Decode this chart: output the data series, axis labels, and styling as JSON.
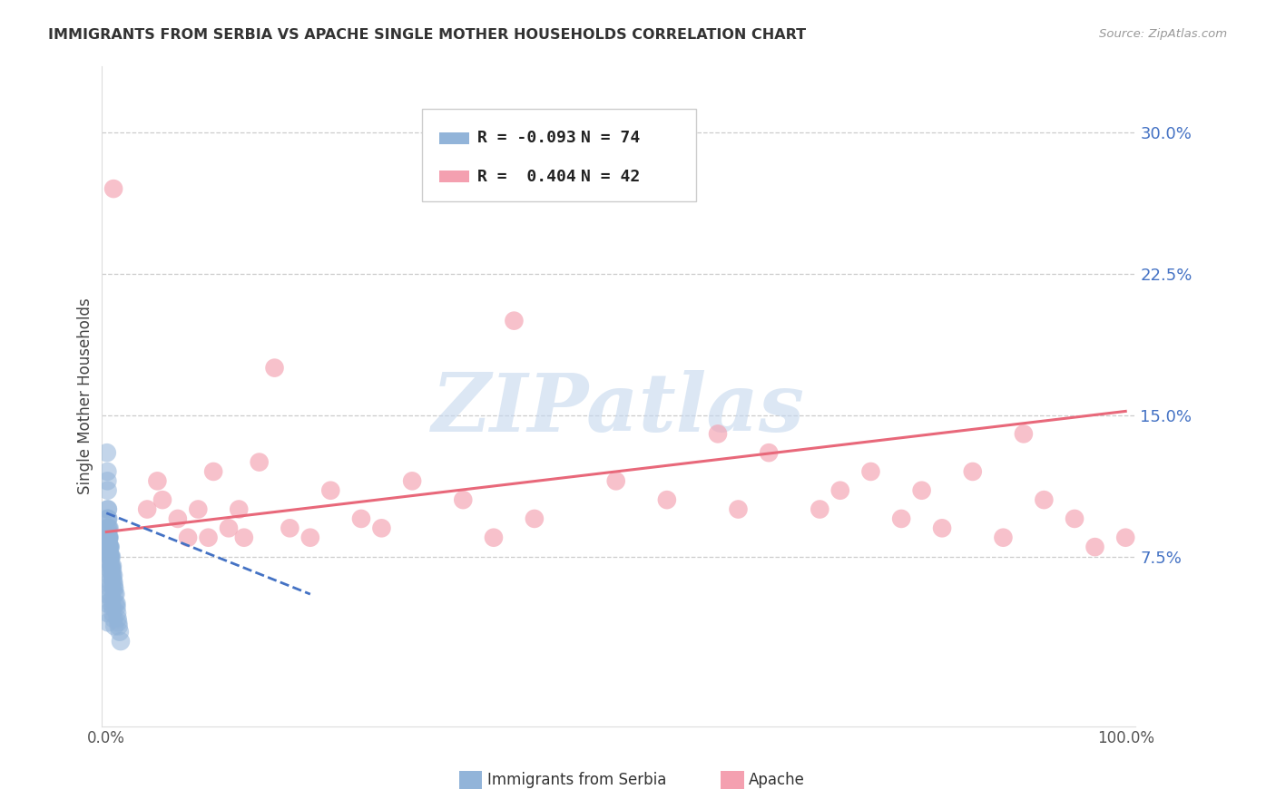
{
  "title": "IMMIGRANTS FROM SERBIA VS APACHE SINGLE MOTHER HOUSEHOLDS CORRELATION CHART",
  "source": "Source: ZipAtlas.com",
  "ylabel": "Single Mother Households",
  "serbia_color": "#92B4D9",
  "apache_color": "#F4A0B0",
  "serbia_line_color": "#4472C4",
  "apache_line_color": "#E8687A",
  "ytick_vals": [
    0.075,
    0.15,
    0.225,
    0.3
  ],
  "ytick_labels": [
    "7.5%",
    "15.0%",
    "22.5%",
    "30.0%"
  ],
  "xlim": [
    -0.005,
    1.01
  ],
  "ylim": [
    -0.015,
    0.335
  ],
  "serbia_x": [
    0.0005,
    0.001,
    0.001,
    0.0012,
    0.0013,
    0.0015,
    0.0015,
    0.0018,
    0.002,
    0.002,
    0.002,
    0.002,
    0.0022,
    0.0025,
    0.0025,
    0.003,
    0.003,
    0.003,
    0.003,
    0.0032,
    0.0035,
    0.004,
    0.004,
    0.004,
    0.0042,
    0.0045,
    0.005,
    0.005,
    0.005,
    0.0055,
    0.006,
    0.006,
    0.006,
    0.0062,
    0.007,
    0.007,
    0.007,
    0.0075,
    0.008,
    0.008,
    0.009,
    0.009,
    0.01,
    0.01,
    0.0105,
    0.011,
    0.0115,
    0.012,
    0.013,
    0.014,
    0.0008,
    0.001,
    0.0012,
    0.0015,
    0.002,
    0.002,
    0.0022,
    0.0025,
    0.003,
    0.003,
    0.0035,
    0.004,
    0.004,
    0.0045,
    0.005,
    0.005,
    0.006,
    0.006,
    0.007,
    0.008,
    0.0005,
    0.0008,
    0.001,
    0.0015
  ],
  "serbia_y": [
    0.13,
    0.12,
    0.115,
    0.11,
    0.1,
    0.095,
    0.1,
    0.095,
    0.09,
    0.085,
    0.085,
    0.09,
    0.085,
    0.08,
    0.085,
    0.08,
    0.085,
    0.09,
    0.08,
    0.075,
    0.08,
    0.075,
    0.08,
    0.075,
    0.075,
    0.07,
    0.075,
    0.07,
    0.068,
    0.065,
    0.07,
    0.065,
    0.068,
    0.062,
    0.065,
    0.062,
    0.058,
    0.06,
    0.058,
    0.055,
    0.055,
    0.05,
    0.05,
    0.048,
    0.045,
    0.042,
    0.04,
    0.038,
    0.035,
    0.03,
    0.095,
    0.09,
    0.088,
    0.085,
    0.082,
    0.078,
    0.075,
    0.072,
    0.068,
    0.065,
    0.062,
    0.06,
    0.058,
    0.055,
    0.052,
    0.05,
    0.048,
    0.045,
    0.042,
    0.038,
    0.055,
    0.05,
    0.045,
    0.04
  ],
  "apache_x": [
    0.007,
    0.04,
    0.05,
    0.055,
    0.07,
    0.08,
    0.09,
    0.1,
    0.105,
    0.12,
    0.13,
    0.135,
    0.15,
    0.165,
    0.18,
    0.2,
    0.22,
    0.25,
    0.27,
    0.3,
    0.35,
    0.38,
    0.4,
    0.42,
    0.5,
    0.55,
    0.6,
    0.62,
    0.65,
    0.7,
    0.72,
    0.75,
    0.78,
    0.8,
    0.82,
    0.85,
    0.88,
    0.9,
    0.92,
    0.95,
    0.97,
    1.0
  ],
  "apache_y": [
    0.27,
    0.1,
    0.115,
    0.105,
    0.095,
    0.085,
    0.1,
    0.085,
    0.12,
    0.09,
    0.1,
    0.085,
    0.125,
    0.175,
    0.09,
    0.085,
    0.11,
    0.095,
    0.09,
    0.115,
    0.105,
    0.085,
    0.2,
    0.095,
    0.115,
    0.105,
    0.14,
    0.1,
    0.13,
    0.1,
    0.11,
    0.12,
    0.095,
    0.11,
    0.09,
    0.12,
    0.085,
    0.14,
    0.105,
    0.095,
    0.08,
    0.085
  ],
  "serbia_line_x": [
    0.0,
    0.2
  ],
  "serbia_line_y": [
    0.098,
    0.055
  ],
  "apache_line_x": [
    0.0,
    1.0
  ],
  "apache_line_y": [
    0.088,
    0.152
  ],
  "watermark_text": "ZIPatlas",
  "watermark_color": "#C5D8EE",
  "watermark_alpha": 0.6,
  "legend_r1_text": "R = -0.093",
  "legend_n1_text": "N = 74",
  "legend_r2_text": "R =  0.404",
  "legend_n2_text": "N = 42"
}
